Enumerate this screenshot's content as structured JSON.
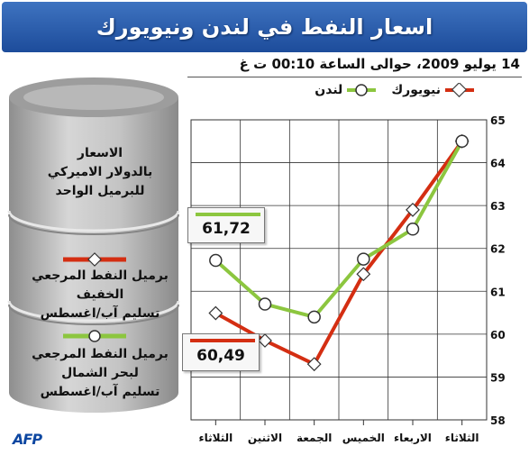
{
  "title": "اسعار النفط في لندن ونيويورك",
  "subtitle": "14 يوليو 2009، حوالى الساعة 00:10 ت غ",
  "legend": {
    "newyork": "نيويورك",
    "london": "لندن"
  },
  "panel": {
    "units_line1": "الاسعار",
    "units_line2": "بالدولار الاميركي",
    "units_line3": "للبرميل الواحد",
    "light_line1": "برميل النفط المرجعي الخفيف",
    "light_line2": "تسليم آب/اغسطس",
    "brent_line1": "برميل النفط المرجعي",
    "brent_line2": "لبحر الشمال",
    "brent_line3": "تسليم آب/اغسطس"
  },
  "callouts": {
    "london_last": "61,72",
    "newyork_last": "60,49"
  },
  "logo": "AFP",
  "colors": {
    "newyork": "#d42e12",
    "london": "#8cc63f",
    "title_bg": "#2a5daf",
    "barrel": "#b3b3b3"
  },
  "chart_data": {
    "type": "line",
    "categories": [
      "الثلاثاء",
      "الاربعاء",
      "الخميس",
      "الجمعة",
      "الاثنين",
      "الثلاثاء"
    ],
    "x_order": "right-to-left",
    "ylim": [
      58,
      65
    ],
    "yticks": [
      58,
      59,
      60,
      61,
      62,
      63,
      64,
      65
    ],
    "ytick_labels": [
      "58",
      "59",
      "60",
      "61",
      "62",
      "63",
      "64",
      "65"
    ],
    "grid": true,
    "series": [
      {
        "name": "نيويورك",
        "marker": "diamond",
        "values": [
          64.5,
          62.9,
          61.4,
          59.3,
          59.85,
          60.49
        ]
      },
      {
        "name": "لندن",
        "marker": "circle",
        "values": [
          64.5,
          62.45,
          61.75,
          60.4,
          60.7,
          61.72
        ]
      }
    ]
  }
}
